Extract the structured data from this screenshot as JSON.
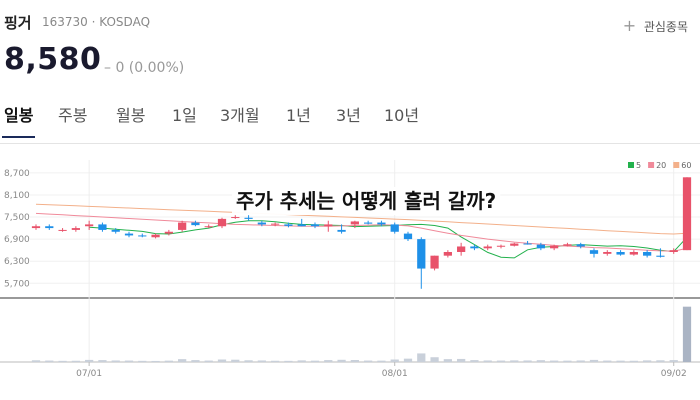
{
  "stock": {
    "name": "핑거",
    "code": "163730",
    "market": "KOSDAQ",
    "price": "8,580",
    "change": "0 (0.00%)",
    "watch": "관심종목"
  },
  "tabs": [
    "일봉",
    "주봉",
    "월봉",
    "1일",
    "3개월",
    "1년",
    "3년",
    "10년"
  ],
  "chart_data": {
    "type": "candlestick",
    "annotation": "주가 추세는 어떻게 흘러 갈까?",
    "categories": [
      null,
      null,
      null,
      null,
      "07/01",
      null,
      null,
      null,
      null,
      null,
      null,
      null,
      null,
      null,
      null,
      null,
      null,
      null,
      null,
      null,
      null,
      null,
      null,
      null,
      null,
      null,
      null,
      "08/01",
      null,
      null,
      null,
      null,
      null,
      null,
      null,
      null,
      null,
      null,
      null,
      null,
      null,
      null,
      null,
      null,
      null,
      null,
      null,
      null,
      "09/02",
      null
    ],
    "open": [
      7200,
      7250,
      7150,
      7150,
      7250,
      7300,
      7150,
      7050,
      7000,
      6950,
      7050,
      7150,
      7350,
      7250,
      7250,
      7500,
      7480,
      7350,
      7300,
      7300,
      7300,
      7300,
      7250,
      7150,
      7300,
      7350,
      7350,
      7300,
      7050,
      6900,
      6100,
      6450,
      6550,
      6700,
      6650,
      6700,
      6720,
      6780,
      6750,
      6650,
      6720,
      6760,
      6600,
      6500,
      6550,
      6480,
      6550,
      6450,
      6550,
      6600
    ],
    "high": [
      7300,
      7300,
      7200,
      7250,
      7400,
      7350,
      7200,
      7100,
      7050,
      7050,
      7150,
      7400,
      7400,
      7300,
      7480,
      7550,
      7550,
      7400,
      7350,
      7350,
      7450,
      7350,
      7400,
      7300,
      7400,
      7400,
      7400,
      7350,
      7100,
      6950,
      6450,
      6600,
      6800,
      6750,
      6750,
      6750,
      6800,
      6850,
      6800,
      6750,
      6800,
      6800,
      6650,
      6600,
      6600,
      6600,
      6600,
      6650,
      6650,
      8580
    ],
    "low": [
      7150,
      7150,
      7100,
      7100,
      7150,
      7100,
      7050,
      6950,
      6950,
      6920,
      7000,
      7100,
      7250,
      7200,
      7200,
      7450,
      7400,
      7250,
      7250,
      7220,
      7250,
      7200,
      7100,
      7050,
      7200,
      7300,
      7250,
      7050,
      6850,
      5550,
      6050,
      6400,
      6450,
      6600,
      6600,
      6650,
      6700,
      6750,
      6600,
      6600,
      6700,
      6650,
      6400,
      6450,
      6450,
      6450,
      6400,
      6400,
      6500,
      6600
    ],
    "close": [
      7250,
      7200,
      7150,
      7200,
      7300,
      7150,
      7100,
      7000,
      6980,
      7020,
      7100,
      7350,
      7280,
      7250,
      7450,
      7500,
      7450,
      7300,
      7320,
      7260,
      7250,
      7250,
      7300,
      7100,
      7380,
      7320,
      7300,
      7100,
      6900,
      6100,
      6450,
      6550,
      6700,
      6650,
      6700,
      6720,
      6780,
      6760,
      6650,
      6720,
      6760,
      6700,
      6500,
      6550,
      6480,
      6550,
      6450,
      6420,
      6600,
      8580
    ],
    "volume": [
      180000,
      150000,
      120000,
      130000,
      220000,
      200000,
      160000,
      150000,
      120000,
      110000,
      140000,
      300000,
      200000,
      150000,
      260000,
      240000,
      180000,
      160000,
      130000,
      120000,
      170000,
      140000,
      200000,
      230000,
      210000,
      150000,
      140000,
      260000,
      350000,
      900000,
      500000,
      300000,
      320000,
      200000,
      160000,
      150000,
      170000,
      160000,
      190000,
      150000,
      140000,
      160000,
      220000,
      150000,
      140000,
      130000,
      170000,
      180000,
      200000,
      5800000
    ],
    "ylim": [
      5300,
      9050
    ],
    "yticks": [
      {
        "value": 8700,
        "label": "8,700"
      },
      {
        "value": 8100,
        "label": "8,100"
      },
      {
        "value": 7500,
        "label": "7,500"
      },
      {
        "value": 6900,
        "label": "6,900"
      },
      {
        "value": 6300,
        "label": "6,300"
      },
      {
        "value": 5700,
        "label": "5,700"
      }
    ],
    "volume_lim": [
      0,
      6500000
    ],
    "grid": true,
    "up_color": "#e8526a",
    "down_color": "#1e90e8",
    "series": [
      {
        "name": "5",
        "color": "#22b14c",
        "values": [
          null,
          null,
          null,
          null,
          7220,
          7200,
          7170,
          7140,
          7110,
          7050,
          7040,
          7090,
          7150,
          7200,
          7290,
          7360,
          7400,
          7400,
          7370,
          7330,
          7300,
          7290,
          7280,
          7270,
          7240,
          7250,
          7260,
          7270,
          7290,
          7300,
          7270,
          7200,
          6960,
          6750,
          6540,
          6410,
          6390,
          6610,
          6680,
          6700,
          6730,
          6750,
          6730,
          6710,
          6720,
          6700,
          6660,
          6600,
          6560,
          6950
        ]
      },
      {
        "name": "20",
        "color": "#f08a9a",
        "values": [
          7600,
          7580,
          7560,
          7540,
          7520,
          7500,
          7480,
          7460,
          7440,
          7420,
          7400,
          7380,
          7360,
          7340,
          7320,
          7300,
          7290,
          7280,
          7270,
          7260,
          7250,
          7250,
          7250,
          7260,
          7270,
          7280,
          7290,
          7280,
          7260,
          7200,
          7130,
          7060,
          7000,
          6950,
          6900,
          6860,
          6820,
          6790,
          6760,
          6730,
          6710,
          6690,
          6670,
          6660,
          6640,
          6620,
          6600,
          6580,
          6570,
          6650
        ]
      },
      {
        "name": "60",
        "color": "#f3b08a",
        "values": [
          7850,
          7835,
          7820,
          7805,
          7790,
          7775,
          7760,
          7745,
          7730,
          7715,
          7700,
          7685,
          7670,
          7655,
          7640,
          7625,
          7610,
          7595,
          7580,
          7565,
          7550,
          7535,
          7520,
          7505,
          7490,
          7475,
          7460,
          7445,
          7430,
          7410,
          7390,
          7370,
          7350,
          7330,
          7310,
          7290,
          7270,
          7250,
          7230,
          7210,
          7190,
          7170,
          7150,
          7130,
          7110,
          7090,
          7070,
          7050,
          7040,
          7060
        ]
      }
    ]
  }
}
